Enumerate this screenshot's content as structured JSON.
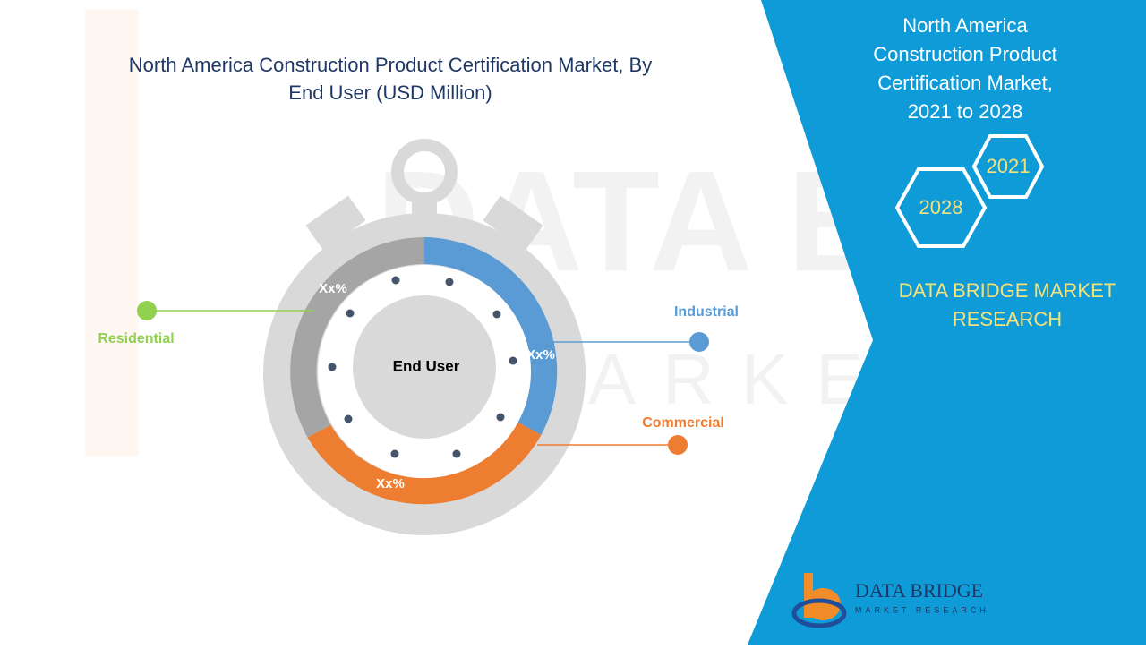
{
  "header": {
    "title_lines": [
      "North America Construction Product Certification Market, By",
      "End User (USD Million)"
    ]
  },
  "diagram": {
    "center_label": "End User",
    "segments": [
      {
        "name": "Industrial",
        "value_label": "Xx%"
      },
      {
        "name": "Commercial",
        "value_label": "Xx%"
      },
      {
        "name": "Residential",
        "value_label": "Xx%"
      }
    ]
  },
  "panel": {
    "title_lines": [
      "North America",
      "Construction Product",
      "Certification Market,",
      "2021 to 2028"
    ],
    "years": [
      "2021",
      "2028"
    ],
    "brand_lines": [
      "DATA BRIDGE MARKET",
      "RESEARCH"
    ]
  },
  "logo": {
    "name": "DATA BRIDGE",
    "tagline": "MARKET RESEARCH"
  }
}
